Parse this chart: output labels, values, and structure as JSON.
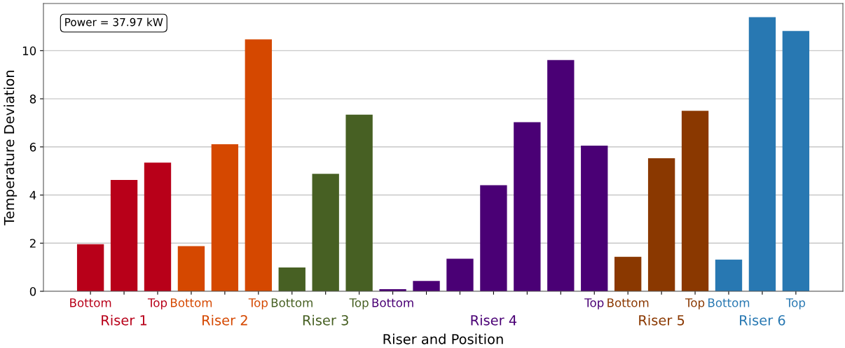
{
  "chart_data": {
    "type": "bar",
    "xlabel": "Riser and Position",
    "ylabel": "Temperature Deviation",
    "annotations": [
      "Power = 37.97 kW"
    ],
    "categories": [
      "Bottom",
      null,
      "Top",
      "Bottom",
      null,
      "Top",
      "Bottom",
      null,
      "Top",
      "Bottom",
      null,
      null,
      null,
      null,
      null,
      "Top",
      "Bottom",
      null,
      "Top",
      "Bottom",
      null,
      "Top"
    ],
    "series": [
      {
        "name": "Riser 1",
        "color": "#b80019",
        "values": [
          1.96,
          4.63,
          5.35,
          null,
          null,
          null,
          null,
          null,
          null,
          null,
          null,
          null,
          null,
          null,
          null,
          null,
          null,
          null,
          null,
          null,
          null,
          null
        ]
      },
      {
        "name": "Riser 2",
        "color": "#d54800",
        "values": [
          null,
          null,
          null,
          1.88,
          6.11,
          10.47,
          null,
          null,
          null,
          null,
          null,
          null,
          null,
          null,
          null,
          null,
          null,
          null,
          null,
          null,
          null,
          null
        ]
      },
      {
        "name": "Riser 3",
        "color": "#476023",
        "values": [
          null,
          null,
          null,
          null,
          null,
          null,
          0.99,
          4.88,
          7.34,
          null,
          null,
          null,
          null,
          null,
          null,
          null,
          null,
          null,
          null,
          null,
          null,
          null
        ]
      },
      {
        "name": "Riser 4",
        "color": "#4a0075",
        "values": [
          null,
          null,
          null,
          null,
          null,
          null,
          null,
          null,
          null,
          0.09,
          0.43,
          1.35,
          4.41,
          7.03,
          9.61,
          6.05,
          null,
          null,
          null,
          null,
          null,
          null
        ]
      },
      {
        "name": "Riser 5",
        "color": "#8a3800",
        "values": [
          null,
          null,
          null,
          null,
          null,
          null,
          null,
          null,
          null,
          null,
          null,
          null,
          null,
          null,
          null,
          null,
          1.43,
          5.53,
          7.5,
          null,
          null,
          null
        ]
      },
      {
        "name": "Riser 6",
        "color": "#2878b2",
        "values": [
          null,
          null,
          null,
          null,
          null,
          null,
          null,
          null,
          null,
          null,
          null,
          null,
          null,
          null,
          null,
          null,
          null,
          null,
          null,
          1.32,
          11.39,
          10.82
        ]
      }
    ],
    "ylim": [
      0,
      11.96
    ],
    "yticks": [
      0,
      2,
      4,
      6,
      8,
      10
    ],
    "grid": "y"
  }
}
